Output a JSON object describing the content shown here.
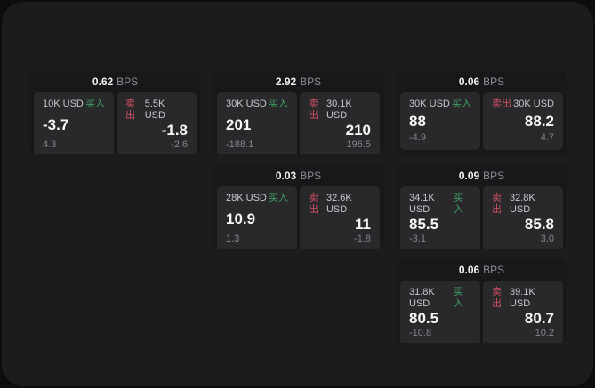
{
  "labels": {
    "bps_unit": "BPS",
    "buy": "买入",
    "sell": "卖出"
  },
  "colors": {
    "background": "#0d0d0f",
    "panel": "#1c1c1e",
    "card": "#18181a",
    "tile": "#29292c",
    "buy_green": "#43a564",
    "sell_red": "#cf5063"
  },
  "cards": [
    {
      "bps": "0.62",
      "buy": {
        "amount": "10K USD",
        "value": "-3.7",
        "delta": "4.3"
      },
      "sell": {
        "amount": "5.5K USD",
        "value": "-1.8",
        "delta": "-2.6"
      }
    },
    {
      "bps": "2.92",
      "buy": {
        "amount": "30K USD",
        "value": "201",
        "delta": "-188.1"
      },
      "sell": {
        "amount": "30.1K USD",
        "value": "210",
        "delta": "196.5"
      }
    },
    {
      "bps": "0.06",
      "buy": {
        "amount": "30K USD",
        "value": "88",
        "delta": "-4.9"
      },
      "sell": {
        "amount": "30K USD",
        "value": "88.2",
        "delta": "4.7"
      }
    },
    {
      "bps": "0.03",
      "buy": {
        "amount": "28K USD",
        "value": "10.9",
        "delta": "1.3"
      },
      "sell": {
        "amount": "32.6K USD",
        "value": "11",
        "delta": "-1.8"
      }
    },
    {
      "bps": "0.09",
      "buy": {
        "amount": "34.1K USD",
        "value": "85.5",
        "delta": "-3.1"
      },
      "sell": {
        "amount": "32.8K USD",
        "value": "85.8",
        "delta": "3.0"
      }
    },
    {
      "bps": "0.06",
      "buy": {
        "amount": "31.8K USD",
        "value": "80.5",
        "delta": "-10.8"
      },
      "sell": {
        "amount": "39.1K USD",
        "value": "80.7",
        "delta": "10.2"
      }
    }
  ]
}
